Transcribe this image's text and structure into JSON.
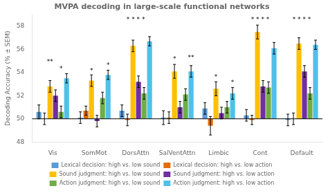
{
  "chart_data": {
    "type": "bar",
    "title": "MVPA decoding in large-scale functional networks",
    "y_label": "Decoding Accuracy (% ± SEM)",
    "categories": [
      "Vis",
      "SomMot",
      "DorsAttn",
      "SalVentAttn",
      "Limbic",
      "Cont",
      "Default"
    ],
    "series": [
      {
        "name": "Lexical decision: high vs. low sound",
        "color": "#5b9bd5",
        "values": [
          50.6,
          50.1,
          50.7,
          50.1,
          50.9,
          50.3,
          49.9
        ],
        "errors": [
          0.6,
          0.5,
          0.5,
          0.6,
          0.5,
          0.5,
          0.5
        ]
      },
      {
        "name": "Lexical decision: high vs. low action",
        "color": "#e36c09",
        "values": [
          50.0,
          50.7,
          49.9,
          50.1,
          49.4,
          49.9,
          50.0
        ],
        "errors": [
          0.5,
          0.4,
          0.5,
          0.5,
          0.8,
          0.4,
          0.5
        ]
      },
      {
        "name": "Sound judgment: high vs. low sound",
        "color": "#ffc000",
        "values": [
          52.8,
          53.3,
          56.3,
          54.1,
          52.6,
          57.5,
          56.5
        ],
        "errors": [
          0.5,
          0.5,
          0.5,
          0.6,
          0.6,
          0.6,
          0.5
        ]
      },
      {
        "name": "Sound judgment: high vs. low action",
        "color": "#7030a0",
        "values": [
          52.0,
          49.8,
          53.2,
          51.0,
          50.5,
          52.8,
          54.1
        ],
        "errors": [
          0.5,
          0.5,
          0.5,
          0.5,
          0.5,
          0.5,
          0.5
        ]
      },
      {
        "name": "Action judgment: high vs. low sound",
        "color": "#70ad47",
        "values": [
          50.6,
          51.8,
          52.2,
          52.1,
          51.0,
          52.7,
          52.2
        ],
        "errors": [
          0.5,
          0.5,
          0.5,
          0.5,
          0.5,
          0.5,
          0.5
        ]
      },
      {
        "name": "Action judgment: high vs. low action",
        "color": "#4fc1e9",
        "values": [
          53.5,
          53.8,
          56.7,
          54.1,
          52.2,
          56.1,
          56.4
        ],
        "errors": [
          0.4,
          0.4,
          0.4,
          0.5,
          0.5,
          0.5,
          0.4
        ]
      }
    ],
    "baseline": 50,
    "ylim": [
      48,
      59
    ],
    "yticks": [
      48,
      50,
      52,
      54,
      56,
      58
    ],
    "grid": false,
    "legend": "bottom",
    "annotations": [
      {
        "category": "Vis",
        "series": [
          "Sound judgment: high vs. low sound"
        ],
        "y": 54.65,
        "text": "**"
      },
      {
        "category": "Vis",
        "series": [
          "Action judgment: high vs. low sound"
        ],
        "y": 54.05,
        "text": "*"
      },
      {
        "category": "SomMot",
        "series": [
          "Sound judgment: high vs. low sound"
        ],
        "y": 53.85,
        "text": "*"
      },
      {
        "category": "SomMot",
        "series": [
          "Action judgment: high vs. low action"
        ],
        "y": 54.35,
        "text": "*"
      },
      {
        "category": "DorsAttn",
        "series": [
          "Sound judgment: high vs. low sound",
          "Sound judgment: high vs. low action"
        ],
        "y": 58.3,
        "text": "* * * *"
      },
      {
        "category": "SalVentAttn",
        "series": [
          "Sound judgment: high vs. low sound"
        ],
        "y": 54.85,
        "text": "*"
      },
      {
        "category": "SalVentAttn",
        "series": [
          "Action judgment: high vs. low action"
        ],
        "y": 55.0,
        "text": "**"
      },
      {
        "category": "Limbic",
        "series": [
          "Sound judgment: high vs. low sound"
        ],
        "y": 53.3,
        "text": "*"
      },
      {
        "category": "Limbic",
        "series": [
          "Action judgment: high vs. low action"
        ],
        "y": 52.85,
        "text": "*"
      },
      {
        "category": "Cont",
        "series": [
          "Sound judgment: high vs. low sound",
          "Sound judgment: high vs. low action"
        ],
        "y": 58.3,
        "text": "* * * *"
      },
      {
        "category": "Default",
        "series": [
          "Sound judgment: high vs. low sound",
          "Sound judgment: high vs. low action"
        ],
        "y": 58.3,
        "text": "* * * *"
      }
    ]
  }
}
